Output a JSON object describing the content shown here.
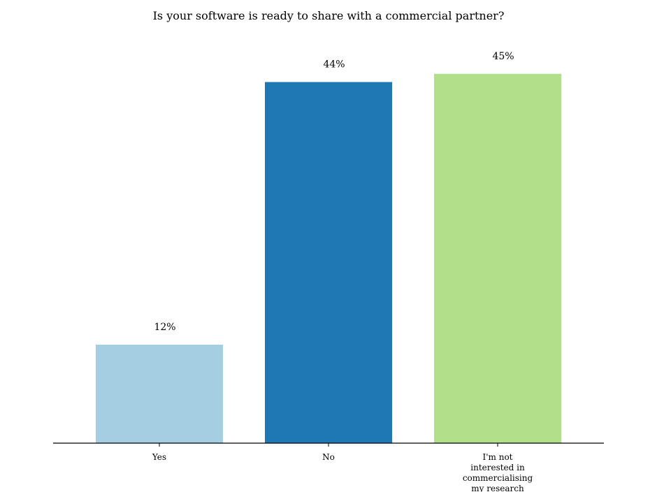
{
  "chart_data": {
    "type": "bar",
    "title": "Is your software is ready to share with a commercial partner?",
    "categories": [
      [
        "Yes"
      ],
      [
        "No"
      ],
      [
        "I'm not",
        "interested in",
        "commercialising",
        "my research"
      ]
    ],
    "values": [
      12,
      44,
      45
    ],
    "data_labels": [
      "12%",
      "44%",
      "45%"
    ],
    "colors": [
      "#a6cee3",
      "#1f78b4",
      "#b2df8a"
    ],
    "ylim": [
      0,
      50
    ],
    "grid": false,
    "legend": "none"
  }
}
